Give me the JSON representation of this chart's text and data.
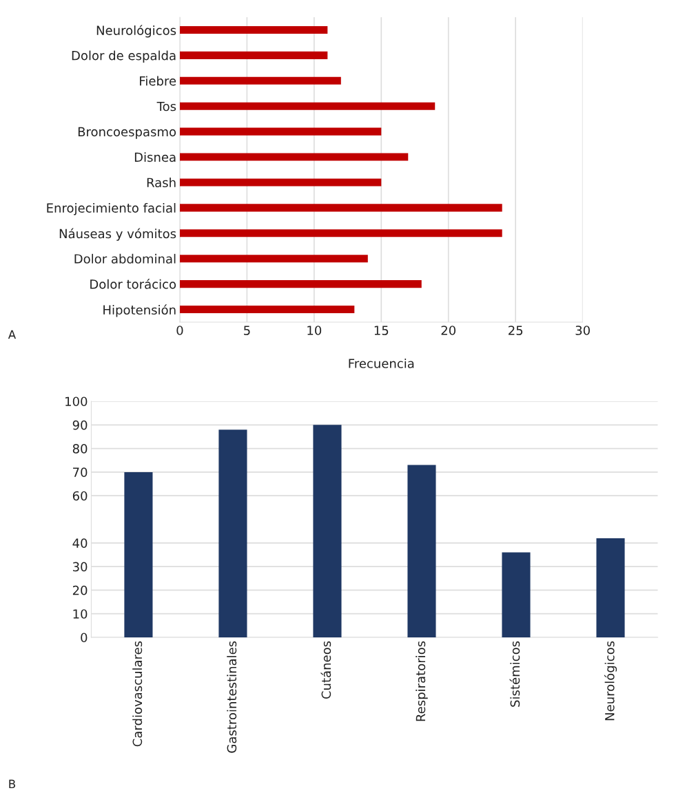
{
  "chart_data": [
    {
      "type": "bar",
      "orientation": "horizontal",
      "categories": [
        "Neurológicos",
        "Dolor de espalda",
        "Fiebre",
        "Tos",
        "Broncoespasmo",
        "Disnea",
        "Rash",
        "Enrojecimiento facial",
        "Náuseas y vómitos",
        "Dolor abdominal",
        "Dolor torácico",
        "Hipotensión"
      ],
      "values": [
        11,
        11,
        12,
        19,
        15,
        17,
        15,
        24,
        24,
        14,
        18,
        13
      ],
      "color": "#c00000",
      "xlim": [
        0,
        30
      ],
      "xticks": [
        0,
        5,
        10,
        15,
        20,
        25,
        30
      ],
      "xlabel": "Frecuencia",
      "grid": "x",
      "annotations": [
        "A"
      ]
    },
    {
      "type": "bar",
      "categories": [
        "Cardiovasculares",
        "Gastrointestinales",
        "Cutáneos",
        "Respiratorios",
        "Sistémicos",
        "Neurológicos"
      ],
      "values": [
        70,
        88,
        90,
        73,
        36,
        42
      ],
      "color": "#1f3864",
      "ylim": [
        0,
        100
      ],
      "yticks": [
        0,
        10,
        20,
        30,
        40,
        60,
        70,
        80,
        90,
        100
      ],
      "grid": "y",
      "annotations": [
        "B"
      ]
    }
  ]
}
